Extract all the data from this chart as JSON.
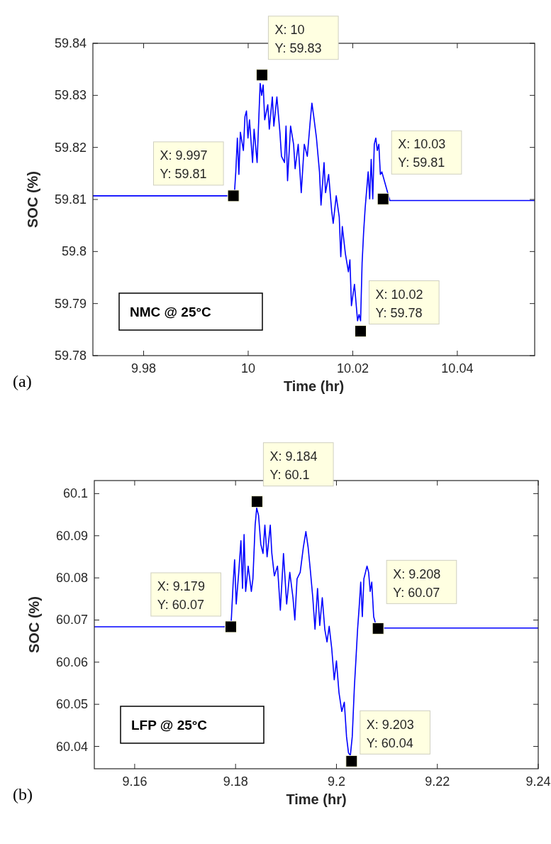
{
  "chart_data": [
    {
      "type": "line",
      "xlabel": "Time (hr)",
      "ylabel": "SOC (%)",
      "xlim": [
        9.9703,
        10.0548
      ],
      "ylim": [
        59.78,
        59.84
      ],
      "xticks": [
        9.98,
        10,
        10.02,
        10.04
      ],
      "yticks": [
        59.78,
        59.79,
        59.8,
        59.81,
        59.82,
        59.83,
        59.84
      ],
      "marker": "none",
      "line_style": "solid",
      "series": [
        {
          "color": "#0000ff",
          "x": [
            9.9703,
            9.99734,
            9.99763,
            9.99793,
            9.99822,
            9.99851,
            9.99909,
            9.99938,
            9.99967,
            9.99996,
            10.00025,
            10.00084,
            10.00113,
            10.00171,
            10.00229,
            10.00258,
            10.00287,
            10.00316,
            10.00375,
            10.00404,
            10.00462,
            10.00491,
            10.00549,
            10.00607,
            10.00637,
            10.00695,
            10.00724,
            10.00753,
            10.00811,
            10.00869,
            10.00898,
            10.00957,
            10.01015,
            10.01073,
            10.01131,
            10.01189,
            10.01219,
            10.01248,
            10.01306,
            10.01364,
            10.01393,
            10.01451,
            10.0148,
            10.01539,
            10.01597,
            10.01626,
            10.01684,
            10.01742,
            10.01771,
            10.018,
            10.01859,
            10.01917,
            10.01946,
            10.01975,
            10.02033,
            10.02092,
            10.02121,
            10.0215,
            10.02179,
            10.02208,
            10.02237,
            10.02295,
            10.02324,
            10.02353,
            10.02383,
            10.02412,
            10.02441,
            10.0247,
            10.02499,
            10.02528,
            10.02557,
            10.0271,
            10.0548
          ],
          "values": [
            59.8107,
            59.8107,
            59.8153,
            59.8218,
            59.8148,
            59.8229,
            59.8194,
            59.8259,
            59.827,
            59.8218,
            59.8253,
            59.8171,
            59.8235,
            59.8171,
            59.8323,
            59.83,
            59.832,
            59.8253,
            59.8282,
            59.8235,
            59.8297,
            59.8241,
            59.8297,
            59.8229,
            59.8183,
            59.8171,
            59.8241,
            59.8136,
            59.8241,
            59.8206,
            59.8159,
            59.8206,
            59.8113,
            59.8206,
            59.8183,
            59.8253,
            59.8285,
            59.8264,
            59.8218,
            59.8153,
            59.8089,
            59.8171,
            59.8113,
            59.8148,
            59.8078,
            59.8054,
            59.8107,
            59.8066,
            59.799,
            59.8048,
            59.7996,
            59.7961,
            59.7984,
            59.7896,
            59.7937,
            59.7867,
            59.7879,
            59.7867,
            59.7978,
            59.8037,
            59.8083,
            59.8153,
            59.8101,
            59.8177,
            59.8101,
            59.8206,
            59.8218,
            59.8194,
            59.8206,
            59.8148,
            59.8153,
            59.8098,
            59.8098
          ]
        }
      ],
      "annotations": [
        "NMC @ 25°C",
        "(a)",
        {
          "text": "X: 9.997\nY: 59.81",
          "x": 9.99717,
          "y": 59.8107
        },
        {
          "text": "X: 10\nY: 59.83",
          "x": 10.00264,
          "y": 59.8339
        },
        {
          "text": "X: 10.02\nY: 59.78",
          "x": 10.0215,
          "y": 59.7847
        },
        {
          "text": "X: 10.03\nY: 59.81",
          "x": 10.0258,
          "y": 59.8101
        }
      ]
    },
    {
      "type": "line",
      "xlabel": "Time (hr)",
      "ylabel": "SOC (%)",
      "xlim": [
        9.152,
        9.24
      ],
      "ylim": [
        60.0347,
        60.1031
      ],
      "xticks": [
        9.16,
        9.18,
        9.2,
        9.22,
        9.24
      ],
      "yticks": [
        60.04,
        60.05,
        60.06,
        60.07,
        60.08,
        60.09,
        60.1
      ],
      "marker": "none",
      "line_style": "solid",
      "series": [
        {
          "color": "#0000ff",
          "x": [
            9.152,
            9.17906,
            9.17919,
            9.1795,
            9.17981,
            9.18013,
            9.18063,
            9.18106,
            9.18138,
            9.18169,
            9.182,
            9.1825,
            9.18313,
            9.18344,
            9.18388,
            9.18419,
            9.18456,
            9.185,
            9.18544,
            9.18581,
            9.18625,
            9.18688,
            9.18719,
            9.18769,
            9.18831,
            9.18888,
            9.1895,
            9.19013,
            9.19075,
            9.19138,
            9.19175,
            9.19219,
            9.19281,
            9.19344,
            9.19394,
            9.19438,
            9.19481,
            9.19531,
            9.19575,
            9.19625,
            9.19669,
            9.19719,
            9.19769,
            9.19813,
            9.19856,
            9.19906,
            9.19956,
            9.2,
            9.2005,
            9.20106,
            9.20156,
            9.202,
            9.20238,
            9.20275,
            9.20313,
            9.20356,
            9.20388,
            9.20419,
            9.2045,
            9.20481,
            9.20513,
            9.20544,
            9.20575,
            9.20606,
            9.20638,
            9.20669,
            9.207,
            9.20738,
            9.20769,
            9.20819,
            9.24
          ],
          "values": [
            60.0684,
            60.0684,
            60.0708,
            60.0783,
            60.0843,
            60.0738,
            60.0813,
            60.0888,
            60.0775,
            60.0903,
            60.0768,
            60.0828,
            60.0768,
            60.0798,
            60.0925,
            60.0966,
            60.0948,
            60.088,
            60.0858,
            60.0925,
            60.085,
            60.0925,
            60.0858,
            60.0805,
            60.0828,
            60.0723,
            60.0858,
            60.0738,
            60.0813,
            60.0753,
            60.07,
            60.0798,
            60.0813,
            60.0873,
            60.091,
            60.0873,
            60.082,
            60.0753,
            60.0678,
            60.0775,
            60.0687,
            60.0753,
            60.0678,
            60.0648,
            60.0685,
            60.0633,
            60.0558,
            60.0603,
            60.0528,
            60.0483,
            60.0505,
            60.0423,
            60.0385,
            60.0378,
            60.0423,
            60.0543,
            60.061,
            60.0678,
            60.073,
            60.079,
            60.0708,
            60.0798,
            60.0813,
            60.0828,
            60.0813,
            60.0768,
            60.079,
            60.0708,
            60.0694,
            60.0681,
            60.0681
          ]
        }
      ],
      "annotations": [
        "LFP @ 25°C",
        "(b)",
        {
          "text": "X: 9.179\nY: 60.07",
          "x": 9.17906,
          "y": 60.0684
        },
        {
          "text": "X: 9.184\nY: 60.1",
          "x": 9.18425,
          "y": 60.0981
        },
        {
          "text": "X: 9.203\nY: 60.04",
          "x": 9.203,
          "y": 60.0365
        },
        {
          "text": "X: 9.208\nY: 60.07",
          "x": 9.20825,
          "y": 60.068
        }
      ]
    }
  ]
}
